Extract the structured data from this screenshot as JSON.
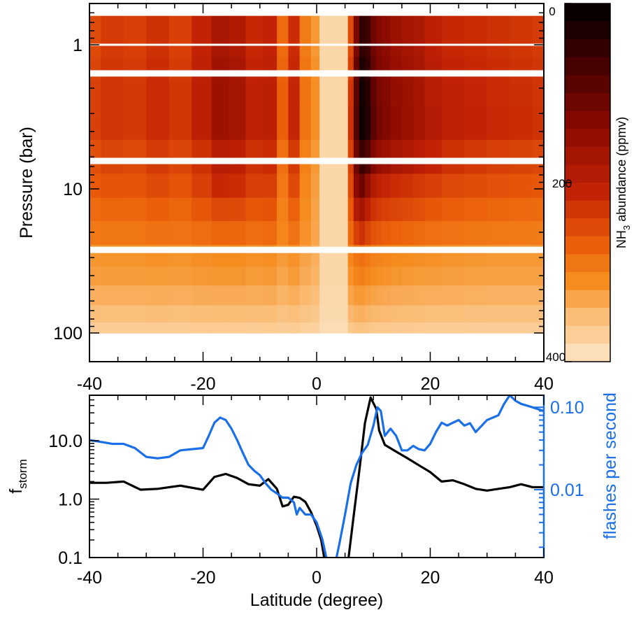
{
  "chart_data": [
    {
      "type": "heatmap",
      "title": "",
      "xlabel": "",
      "ylabel": "Pressure (bar)",
      "xlim": [
        -40,
        40
      ],
      "ylim_log": [
        0.6,
        150
      ],
      "y_scale": "log",
      "y_inverted": true,
      "xticks": [
        "-40",
        "-20",
        "0",
        "20",
        "40"
      ],
      "yticks": [
        "1",
        "10",
        "100"
      ],
      "colorbar": {
        "label_main": "NH",
        "label_sub": "3",
        "label_rest": " abundance (ppmv)",
        "range": [
          0,
          400
        ],
        "ticks": [
          "0",
          "200",
          "400"
        ],
        "colormap": "black-red-orange-cream"
      },
      "latitudes": [
        -40,
        -36,
        -32,
        -28,
        -24,
        -20,
        -17,
        -14,
        -11,
        -8,
        -6,
        -4,
        -2,
        0,
        1,
        2,
        3,
        4,
        5,
        6,
        7,
        8,
        9,
        10,
        11,
        12,
        14,
        16,
        18,
        20,
        24,
        28,
        32,
        36,
        40
      ],
      "pressure_levels_bar": [
        0.8,
        1.05,
        1.4,
        2.2,
        3.2,
        6.5,
        9.5,
        14,
        20,
        30,
        40,
        55,
        75,
        95
      ],
      "nh3_ppmv": [
        [
          250,
          235,
          240,
          225,
          240,
          210,
          175,
          185,
          215,
          210,
          280,
          220,
          295,
          320,
          380,
          380,
          380,
          380,
          380,
          250,
          120,
          50,
          60,
          110,
          130,
          140,
          160,
          170,
          180,
          200,
          215,
          220,
          225,
          230,
          235
        ],
        [
          250,
          235,
          240,
          225,
          240,
          210,
          175,
          185,
          215,
          210,
          280,
          220,
          295,
          320,
          380,
          380,
          380,
          380,
          380,
          250,
          120,
          50,
          60,
          110,
          130,
          140,
          160,
          170,
          180,
          200,
          215,
          220,
          225,
          230,
          235
        ],
        [
          245,
          230,
          235,
          220,
          235,
          205,
          165,
          175,
          210,
          205,
          275,
          215,
          290,
          315,
          380,
          380,
          380,
          380,
          380,
          240,
          100,
          30,
          50,
          100,
          125,
          135,
          155,
          165,
          175,
          195,
          210,
          215,
          220,
          225,
          230
        ],
        [
          240,
          228,
          232,
          218,
          230,
          200,
          160,
          170,
          205,
          200,
          270,
          212,
          288,
          312,
          380,
          380,
          380,
          380,
          380,
          230,
          90,
          20,
          40,
          95,
          120,
          130,
          150,
          160,
          172,
          192,
          205,
          212,
          218,
          222,
          228
        ],
        [
          240,
          228,
          232,
          218,
          230,
          200,
          160,
          170,
          205,
          200,
          270,
          212,
          288,
          312,
          380,
          380,
          380,
          380,
          380,
          225,
          80,
          15,
          35,
          90,
          118,
          128,
          148,
          158,
          170,
          190,
          203,
          210,
          216,
          220,
          226
        ],
        [
          255,
          245,
          248,
          235,
          245,
          225,
          195,
          200,
          225,
          220,
          285,
          235,
          300,
          320,
          380,
          380,
          380,
          380,
          380,
          240,
          110,
          60,
          80,
          130,
          150,
          160,
          175,
          185,
          195,
          210,
          225,
          232,
          238,
          242,
          246
        ],
        [
          265,
          258,
          260,
          250,
          258,
          240,
          215,
          220,
          240,
          238,
          292,
          250,
          305,
          325,
          380,
          380,
          380,
          380,
          380,
          250,
          140,
          110,
          150,
          190,
          205,
          212,
          220,
          225,
          232,
          240,
          248,
          252,
          256,
          260,
          262
        ],
        [
          280,
          275,
          276,
          270,
          274,
          262,
          248,
          250,
          262,
          260,
          300,
          272,
          310,
          328,
          380,
          380,
          380,
          380,
          380,
          265,
          190,
          170,
          200,
          225,
          235,
          240,
          245,
          250,
          255,
          262,
          268,
          272,
          275,
          278,
          280
        ],
        [
          292,
          290,
          290,
          286,
          288,
          282,
          275,
          276,
          282,
          280,
          305,
          288,
          315,
          330,
          380,
          380,
          380,
          380,
          380,
          280,
          240,
          225,
          245,
          258,
          264,
          268,
          272,
          276,
          280,
          284,
          288,
          290,
          292,
          294,
          295
        ],
        [
          318,
          316,
          316,
          314,
          316,
          312,
          310,
          310,
          314,
          312,
          322,
          315,
          328,
          338,
          380,
          380,
          380,
          380,
          380,
          305,
          290,
          285,
          292,
          300,
          303,
          305,
          308,
          310,
          312,
          314,
          316,
          318,
          320,
          320,
          320
        ],
        [
          325,
          323,
          323,
          322,
          323,
          320,
          318,
          318,
          322,
          320,
          330,
          322,
          335,
          342,
          380,
          380,
          380,
          380,
          380,
          315,
          302,
          298,
          305,
          310,
          313,
          315,
          318,
          320,
          322,
          323,
          325,
          326,
          327,
          327,
          327
        ],
        [
          338,
          337,
          337,
          336,
          337,
          335,
          334,
          334,
          336,
          335,
          342,
          337,
          346,
          352,
          382,
          382,
          382,
          382,
          382,
          330,
          322,
          320,
          325,
          328,
          330,
          332,
          334,
          335,
          336,
          337,
          338,
          339,
          340,
          340,
          340
        ],
        [
          352,
          351,
          351,
          350,
          351,
          350,
          349,
          349,
          350,
          350,
          355,
          351,
          358,
          362,
          384,
          384,
          384,
          384,
          384,
          345,
          340,
          338,
          342,
          345,
          346,
          347,
          348,
          349,
          350,
          351,
          352,
          353,
          354,
          354,
          354
        ],
        [
          368,
          367,
          367,
          367,
          367,
          366,
          366,
          366,
          367,
          366,
          369,
          367,
          372,
          374,
          388,
          388,
          388,
          388,
          388,
          362,
          358,
          356,
          360,
          362,
          363,
          364,
          365,
          365,
          366,
          367,
          367,
          368,
          368,
          368,
          368
        ]
      ],
      "blank_bands_bar": [
        1.0,
        1.58,
        6.4,
        26.5
      ]
    },
    {
      "type": "line",
      "title": "",
      "xlabel": "Latitude (degree)",
      "xlim": [
        -40,
        40
      ],
      "xticks": [
        "-40",
        "-20",
        "0",
        "20",
        "40"
      ],
      "left_axis": {
        "label_main": "f",
        "label_sub": "storm",
        "scale": "log",
        "range": [
          0.1,
          60
        ],
        "ticks": [
          "0.1",
          "1.0",
          "10.0"
        ]
      },
      "right_axis": {
        "label": "flashes per second",
        "scale": "log",
        "range": [
          0.0015,
          0.14
        ],
        "ticks": [
          "0.01",
          "0.10"
        ],
        "color": "#1a6fe6"
      },
      "series": [
        {
          "axis": "left",
          "color": "#000000",
          "x": [
            -40,
            -37,
            -34,
            -31,
            -28,
            -24,
            -20,
            -18,
            -16,
            -14,
            -12,
            -10,
            -8.5,
            -7,
            -6,
            -5,
            -4,
            -3,
            -2,
            -1,
            0,
            0.8,
            1.5,
            5.5,
            6.5,
            7.5,
            8.5,
            9.5,
            10.5,
            11,
            12,
            14,
            16,
            18,
            20,
            22,
            24,
            26,
            28,
            30,
            32,
            34,
            36,
            38,
            40
          ],
          "y": [
            1.9,
            1.9,
            2.0,
            1.45,
            1.5,
            1.7,
            1.45,
            2.4,
            2.7,
            2.3,
            1.8,
            1.7,
            2.2,
            1.5,
            0.75,
            0.8,
            1.1,
            1.05,
            0.9,
            0.6,
            0.35,
            0.2,
            0.08,
            0.08,
            0.5,
            3.0,
            20,
            55,
            35,
            15,
            8.5,
            6.5,
            5.0,
            3.8,
            2.9,
            2.0,
            2.1,
            1.8,
            1.5,
            1.4,
            1.5,
            1.6,
            1.8,
            1.6,
            1.6
          ]
        },
        {
          "axis": "right",
          "color": "#1a6fe6",
          "x": [
            -40,
            -38,
            -36,
            -34,
            -32,
            -30,
            -28,
            -26,
            -24,
            -22,
            -20,
            -19,
            -18,
            -17,
            -16,
            -15,
            -14,
            -13,
            -12,
            -11,
            -10,
            -9,
            -8,
            -7,
            -6,
            -5,
            -4,
            -3.5,
            -3,
            -2,
            -1,
            0,
            1,
            2,
            3.2,
            4,
            5,
            6,
            7,
            8,
            9,
            10,
            10.7,
            11.3,
            12,
            13,
            14,
            15,
            16,
            17,
            18,
            19,
            20,
            21,
            22,
            23,
            24,
            25,
            26,
            27,
            28,
            30,
            32,
            33,
            34,
            35,
            36,
            38,
            40
          ],
          "y": [
            0.04,
            0.038,
            0.036,
            0.036,
            0.032,
            0.025,
            0.024,
            0.025,
            0.03,
            0.031,
            0.032,
            0.045,
            0.065,
            0.075,
            0.07,
            0.055,
            0.04,
            0.028,
            0.02,
            0.017,
            0.015,
            0.012,
            0.01,
            0.009,
            0.008,
            0.008,
            0.007,
            0.005,
            0.006,
            0.005,
            0.005,
            0.004,
            0.0025,
            0.0012,
            0.0012,
            0.0022,
            0.005,
            0.012,
            0.02,
            0.028,
            0.035,
            0.06,
            0.1,
            0.09,
            0.045,
            0.055,
            0.045,
            0.03,
            0.03,
            0.034,
            0.031,
            0.03,
            0.036,
            0.05,
            0.065,
            0.06,
            0.065,
            0.07,
            0.06,
            0.064,
            0.05,
            0.07,
            0.08,
            0.11,
            0.14,
            0.12,
            0.11,
            0.1,
            0.09
          ]
        }
      ]
    }
  ]
}
